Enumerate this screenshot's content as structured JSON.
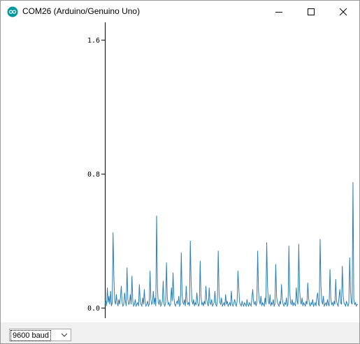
{
  "window": {
    "title": "COM26 (Arduino/Genuino Uno)",
    "icon": "arduino-logo-icon",
    "controls": [
      "minimize-icon",
      "maximize-icon",
      "close-icon"
    ]
  },
  "chart_data": {
    "type": "line",
    "title": "",
    "xlabel": "",
    "ylabel": "",
    "ylim": [
      -0.05,
      1.68
    ],
    "y_ticks": [
      0.0,
      0.8,
      1.6
    ],
    "y_tick_labels": [
      "0.0",
      "0.8",
      "1.6"
    ],
    "grid": false,
    "legend": "none",
    "series": [
      {
        "color": "#2c7fb8",
        "values": [
          0.02,
          0.04,
          0.01,
          0.12,
          0.03,
          0.07,
          0.02,
          0.1,
          0.01,
          0.03,
          0.45,
          0.18,
          0.04,
          0.02,
          0.08,
          0.03,
          0.01,
          0.05,
          0.02,
          0.06,
          0.13,
          0.03,
          0.01,
          0.02,
          0.09,
          0.04,
          0.01,
          0.24,
          0.05,
          0.02,
          0.03,
          0.08,
          0.02,
          0.19,
          0.04,
          0.01,
          0.02,
          0.05,
          0.01,
          0.02,
          0.03,
          0.01,
          0.14,
          0.04,
          0.02,
          0.01,
          0.06,
          0.02,
          0.11,
          0.03,
          0.01,
          0.02,
          0.04,
          0.01,
          0.02,
          0.22,
          0.05,
          0.02,
          0.03,
          0.1,
          0.02,
          0.06,
          0.01,
          0.55,
          0.12,
          0.03,
          0.02,
          0.05,
          0.01,
          0.02,
          0.04,
          0.16,
          0.02,
          0.01,
          0.03,
          0.27,
          0.06,
          0.02,
          0.03,
          0.01,
          0.02,
          0.12,
          0.04,
          0.21,
          0.06,
          0.02,
          0.01,
          0.03,
          0.04,
          0.02,
          0.07,
          0.01,
          0.02,
          0.33,
          0.08,
          0.03,
          0.02,
          0.05,
          0.01,
          0.13,
          0.04,
          0.02,
          0.03,
          0.01,
          0.4,
          0.15,
          0.04,
          0.02,
          0.05,
          0.01,
          0.03,
          0.02,
          0.09,
          0.03,
          0.01,
          0.02,
          0.28,
          0.07,
          0.02,
          0.03,
          0.01,
          0.04,
          0.02,
          0.13,
          0.05,
          0.02,
          0.01,
          0.12,
          0.03,
          0.02,
          0.05,
          0.01,
          0.02,
          0.03,
          0.1,
          0.02,
          0.01,
          0.04,
          0.34,
          0.09,
          0.03,
          0.02,
          0.06,
          0.01,
          0.02,
          0.03,
          0.01,
          0.08,
          0.02,
          0.04,
          0.01,
          0.02,
          0.03,
          0.01,
          0.1,
          0.02,
          0.01,
          0.03,
          0.05,
          0.02,
          0.01,
          0.04,
          0.22,
          0.12,
          0.03,
          0.02,
          0.01,
          0.04,
          0.02,
          0.01,
          0.03,
          0.02,
          0.01,
          0.05,
          0.02,
          0.01,
          0.03,
          0.02,
          0.01,
          0.06,
          0.11,
          0.03,
          0.02,
          0.04,
          0.01,
          0.03,
          0.34,
          0.1,
          0.04,
          0.02,
          0.07,
          0.01,
          0.03,
          0.02,
          0.01,
          0.06,
          0.02,
          0.39,
          0.13,
          0.04,
          0.02,
          0.08,
          0.01,
          0.03,
          0.02,
          0.05,
          0.01,
          0.02,
          0.26,
          0.07,
          0.03,
          0.02,
          0.01,
          0.04,
          0.02,
          0.14,
          0.05,
          0.02,
          0.01,
          0.03,
          0.02,
          0.06,
          0.01,
          0.02,
          0.37,
          0.1,
          0.03,
          0.02,
          0.05,
          0.01,
          0.03,
          0.02,
          0.01,
          0.12,
          0.04,
          0.02,
          0.38,
          0.11,
          0.04,
          0.02,
          0.06,
          0.01,
          0.03,
          0.02,
          0.01,
          0.04,
          0.02,
          0.15,
          0.06,
          0.02,
          0.01,
          0.03,
          0.02,
          0.05,
          0.01,
          0.02,
          0.03,
          0.01,
          0.06,
          0.09,
          0.02,
          0.01,
          0.41,
          0.13,
          0.04,
          0.02,
          0.07,
          0.01,
          0.02,
          0.03,
          0.01,
          0.05,
          0.02,
          0.01,
          0.23,
          0.06,
          0.02,
          0.03,
          0.01,
          0.04,
          0.02,
          0.17,
          0.04,
          0.02,
          0.01,
          0.06,
          0.11,
          0.03,
          0.02,
          0.25,
          0.08,
          0.03,
          0.02,
          0.01,
          0.04,
          0.02,
          0.01,
          0.03,
          0.3,
          0.1,
          0.03,
          0.02,
          0.75,
          0.05,
          0.02,
          0.03,
          0.01,
          0.02,
          0.02
        ]
      }
    ]
  },
  "footer": {
    "baud_select": "9600 baud",
    "baud_arrow_icon": "chevron-down-icon"
  }
}
